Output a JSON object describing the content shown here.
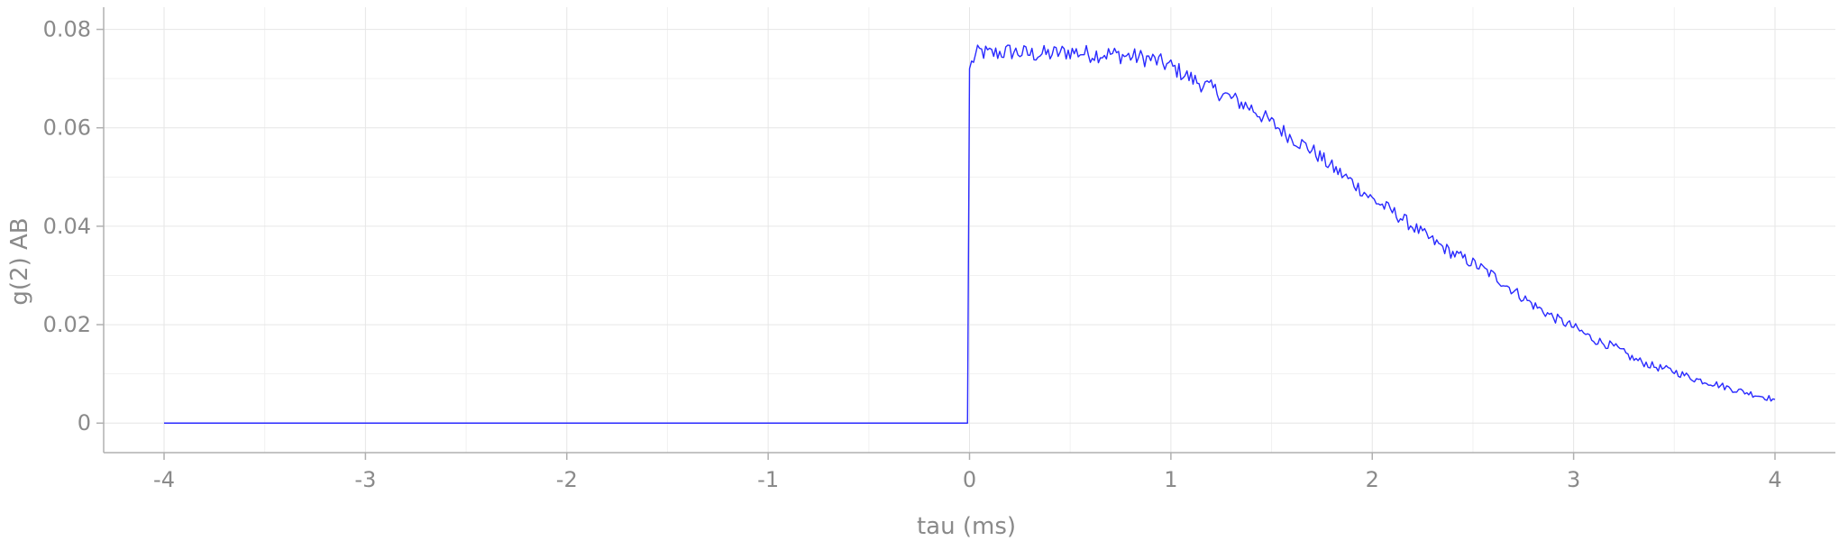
{
  "chart_data": {
    "type": "line",
    "xlabel": "tau (ms)",
    "ylabel": "g(2) AB",
    "xlim": [
      -4.3,
      4.3
    ],
    "ylim": [
      -0.006,
      0.0845
    ],
    "x_ticks": [
      -4,
      -3,
      -2,
      -1,
      0,
      1,
      2,
      3,
      4
    ],
    "y_ticks": [
      0,
      0.02,
      0.04,
      0.06,
      0.08
    ],
    "x_tick_labels": [
      "-4",
      "-3",
      "-2",
      "-1",
      "0",
      "1",
      "2",
      "3",
      "4"
    ],
    "y_tick_labels": [
      "0",
      "0.02",
      "0.04",
      "0.06",
      "0.08"
    ],
    "grid": true,
    "line_color": "#2a2aff",
    "series": [
      {
        "x": [
          -4,
          -3,
          -2,
          -1,
          -0.01,
          0.0,
          0.02,
          0.05,
          0.1,
          0.2,
          0.3,
          0.4,
          0.5,
          0.6,
          0.7,
          0.8,
          0.9,
          1.0,
          1.1,
          1.2,
          1.3,
          1.4,
          1.5,
          1.6,
          1.7,
          1.8,
          1.9,
          2.0,
          2.1,
          2.2,
          2.3,
          2.4,
          2.5,
          2.6,
          2.7,
          2.8,
          2.9,
          3.0,
          3.1,
          3.2,
          3.3,
          3.4,
          3.5,
          3.6,
          3.7,
          3.8,
          3.9,
          4.0
        ],
        "y": [
          0,
          0,
          0,
          0,
          0,
          0.072,
          0.074,
          0.0755,
          0.075,
          0.0755,
          0.075,
          0.075,
          0.0755,
          0.075,
          0.075,
          0.0745,
          0.074,
          0.0725,
          0.07,
          0.068,
          0.066,
          0.064,
          0.061,
          0.058,
          0.0555,
          0.052,
          0.049,
          0.0455,
          0.043,
          0.04,
          0.037,
          0.0345,
          0.0325,
          0.03,
          0.027,
          0.024,
          0.0215,
          0.0195,
          0.017,
          0.0155,
          0.013,
          0.0115,
          0.0105,
          0.009,
          0.008,
          0.0068,
          0.0058,
          0.0048
        ]
      }
    ]
  }
}
